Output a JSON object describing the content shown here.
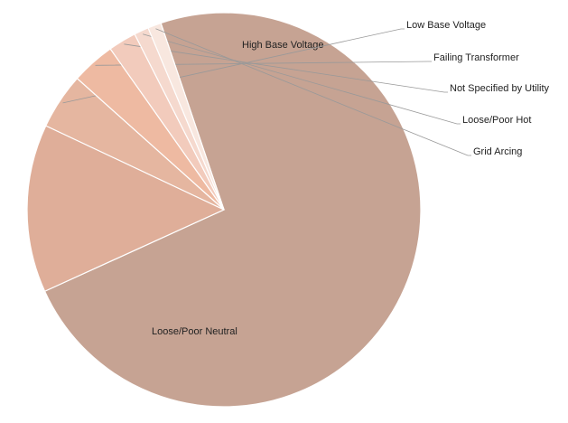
{
  "chart_data": {
    "type": "pie",
    "categories": [
      "Loose/Poor Neutral",
      "High Base Voltage",
      "Low Base Voltage",
      "Failing Transformer",
      "Not Specified by Utility",
      "Loose/Poor Hot",
      "Grid Arcing"
    ],
    "values": [
      73.4,
      13.8,
      4.6,
      3.6,
      2.3,
      1.2,
      1.1
    ],
    "colors": [
      "#c6a393",
      "#dfae99",
      "#e5b6a0",
      "#eebaa2",
      "#f2cbbc",
      "#f5d9ce",
      "#f8e7df"
    ]
  }
}
